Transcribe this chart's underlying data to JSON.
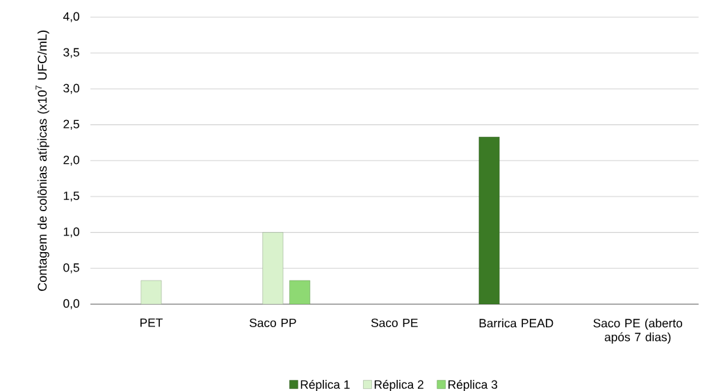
{
  "chart_data": {
    "type": "bar",
    "ylabel": "Contagem de colônias atípicas (x10$^{7}$ UFC/mL)",
    "categories": [
      "PET",
      "Saco PP",
      "Saco PE",
      "Barrica PEAD",
      "Saco PE (aberto após 7 dias)"
    ],
    "series": [
      {
        "name": "Réplica 1",
        "color": "#3b7a25",
        "values": [
          null,
          null,
          null,
          2.33,
          null
        ]
      },
      {
        "name": "Réplica 2",
        "color": "#d9f2cc",
        "values": [
          0.33,
          1.0,
          null,
          null,
          null
        ]
      },
      {
        "name": "Réplica 3",
        "color": "#8ed973",
        "values": [
          null,
          0.33,
          null,
          null,
          null
        ]
      }
    ],
    "ylim": [
      0,
      4
    ],
    "yticks": [
      {
        "value": 0,
        "label": "0,0"
      },
      {
        "value": 0.5,
        "label": "0,5"
      },
      {
        "value": 1,
        "label": "1,0"
      },
      {
        "value": 1.5,
        "label": "1,5"
      },
      {
        "value": 2,
        "label": "2,0"
      },
      {
        "value": 2.5,
        "label": "2,5"
      },
      {
        "value": 3,
        "label": "3,0"
      },
      {
        "value": 3.5,
        "label": "3,5"
      },
      {
        "value": 4,
        "label": "4,0"
      }
    ],
    "grid": "y",
    "legend": "bottom"
  }
}
